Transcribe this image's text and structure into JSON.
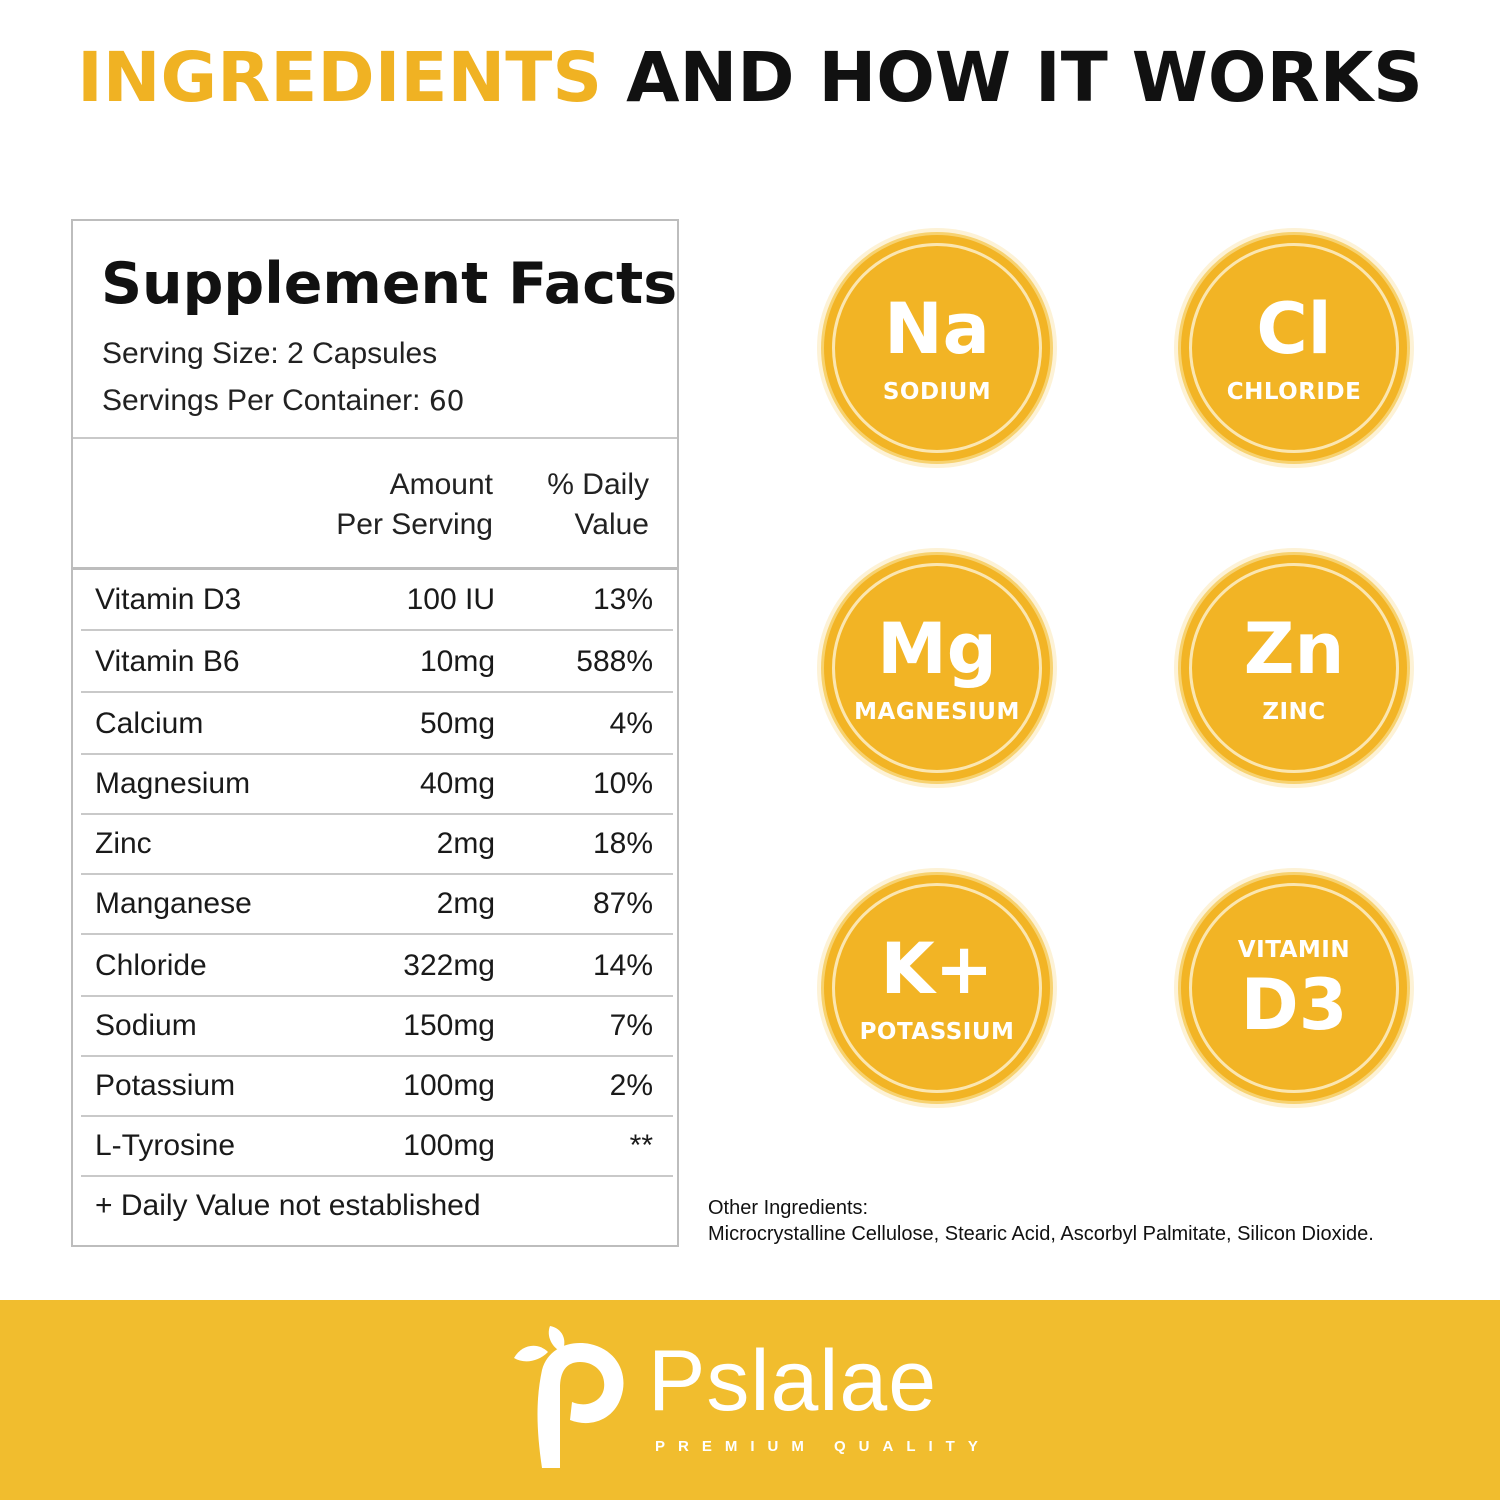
{
  "headline": {
    "accent": "INGREDIENTS",
    "rest": "AND HOW IT WORKS"
  },
  "facts": {
    "title": "Supplement Facts",
    "serving_size_label": "Serving Size: 2 Capsules",
    "servings_per_container_label": "Servings Per Container:",
    "servings_per_container_value": "60",
    "col_amount_1": "Amount",
    "col_amount_2": "Per Serving",
    "col_dv_1": "% Daily",
    "col_dv_2": "Value",
    "rows": [
      {
        "name": "Vitamin D3",
        "amount": "100 IU",
        "dv": "13%"
      },
      {
        "name": "Vitamin B6",
        "amount": "10mg",
        "dv": "588%"
      },
      {
        "name": "Calcium",
        "amount": "50mg",
        "dv": "4%"
      },
      {
        "name": "Magnesium",
        "amount": "40mg",
        "dv": "10%"
      },
      {
        "name": "Zinc",
        "amount": "2mg",
        "dv": "18%"
      },
      {
        "name": "Manganese",
        "amount": "2mg",
        "dv": "87%"
      },
      {
        "name": "Chloride",
        "amount": "322mg",
        "dv": "14%"
      },
      {
        "name": "Sodium",
        "amount": "150mg",
        "dv": "7%"
      },
      {
        "name": "Potassium",
        "amount": "100mg",
        "dv": "2%"
      },
      {
        "name": "L-Tyrosine",
        "amount": "100mg",
        "dv": "**"
      }
    ],
    "footnote": "+ Daily Value not established"
  },
  "badges": [
    {
      "symbol": "Na",
      "label": "SODIUM"
    },
    {
      "symbol": "Cl",
      "label": "CHLORIDE"
    },
    {
      "symbol": "Mg",
      "label": "MAGNESIUM"
    },
    {
      "symbol": "Zn",
      "label": "ZINC"
    },
    {
      "symbol": "K+",
      "label": "POTASSIUM"
    },
    {
      "symbol": "D3",
      "label": "VITAMIN"
    }
  ],
  "other_ingredients": {
    "label": "Other Ingredients:",
    "text": "Microcrystalline Cellulose, Stearic Acid, Ascorbyl Palmitate, Silicon Dioxide."
  },
  "brand": {
    "name": "Pslalae",
    "tagline": "PREMIUM QUALITY"
  },
  "colors": {
    "accent": "#F0B223",
    "band": "#F1BD2E",
    "badge": "#F2B425"
  }
}
